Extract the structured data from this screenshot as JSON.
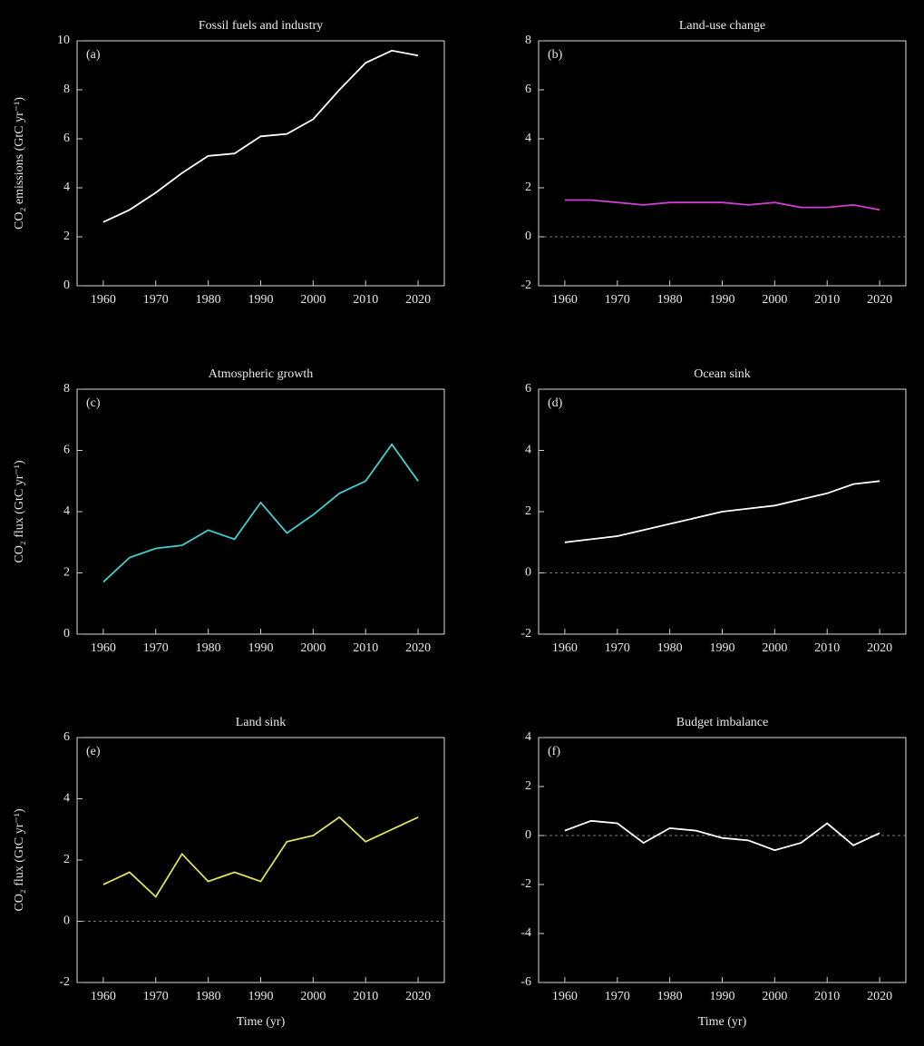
{
  "chart_data": [
    {
      "type": "line",
      "panel": "(a)",
      "title": "Fossil fuels and industry",
      "ylabel": "CO₂ emissions (GtC yr⁻¹)",
      "x": [
        1960,
        1965,
        1970,
        1975,
        1980,
        1985,
        1990,
        1995,
        2000,
        2005,
        2010,
        2015,
        2020
      ],
      "series": [
        {
          "name": "Fossil fuels and industry",
          "color": "#ffffff",
          "values": [
            2.6,
            3.1,
            3.8,
            4.6,
            5.3,
            5.4,
            6.1,
            6.2,
            6.8,
            8.0,
            9.1,
            9.6,
            9.4
          ]
        }
      ],
      "xlim": [
        1955,
        2025
      ],
      "xticks": [
        1960,
        1970,
        1980,
        1990,
        2000,
        2010,
        2020
      ],
      "ylim": [
        0,
        10
      ],
      "yticks": [
        0,
        2,
        4,
        6,
        8,
        10
      ]
    },
    {
      "type": "line",
      "panel": "(b)",
      "title": "Land-use change",
      "x": [
        1960,
        1965,
        1970,
        1975,
        1980,
        1985,
        1990,
        1995,
        2000,
        2005,
        2010,
        2015,
        2020
      ],
      "series": [
        {
          "name": "Land-use change",
          "color": "#d040d0",
          "values": [
            1.5,
            1.5,
            1.4,
            1.3,
            1.4,
            1.4,
            1.4,
            1.3,
            1.4,
            1.2,
            1.2,
            1.3,
            1.1
          ]
        }
      ],
      "xlim": [
        1955,
        2025
      ],
      "xticks": [
        1960,
        1970,
        1980,
        1990,
        2000,
        2010,
        2020
      ],
      "ylim": [
        -2,
        8
      ],
      "yticks": [
        -2,
        0,
        2,
        4,
        6,
        8
      ]
    },
    {
      "type": "line",
      "panel": "(c)",
      "title": "Atmospheric growth",
      "ylabel": "CO₂ flux (GtC yr⁻¹)",
      "x": [
        1960,
        1965,
        1970,
        1975,
        1980,
        1985,
        1990,
        1995,
        2000,
        2005,
        2010,
        2015,
        2020
      ],
      "series": [
        {
          "name": "Atmospheric growth",
          "color": "#40d0d0",
          "values": [
            1.7,
            2.5,
            2.8,
            2.9,
            3.4,
            3.1,
            4.3,
            3.3,
            3.9,
            4.6,
            5.0,
            6.2,
            5.0
          ]
        }
      ],
      "xlim": [
        1955,
        2025
      ],
      "xticks": [
        1960,
        1970,
        1980,
        1990,
        2000,
        2010,
        2020
      ],
      "ylim": [
        0,
        8
      ],
      "yticks": [
        0,
        2,
        4,
        6,
        8
      ]
    },
    {
      "type": "line",
      "panel": "(d)",
      "title": "Ocean sink",
      "x": [
        1960,
        1965,
        1970,
        1975,
        1980,
        1985,
        1990,
        1995,
        2000,
        2005,
        2010,
        2015,
        2020
      ],
      "series": [
        {
          "name": "Ocean sink",
          "color": "#ffffff",
          "values": [
            1.0,
            1.1,
            1.2,
            1.4,
            1.6,
            1.8,
            2.0,
            2.1,
            2.2,
            2.4,
            2.6,
            2.9,
            3.0
          ]
        }
      ],
      "xlim": [
        1955,
        2025
      ],
      "xticks": [
        1960,
        1970,
        1980,
        1990,
        2000,
        2010,
        2020
      ],
      "ylim": [
        -2,
        6
      ],
      "yticks": [
        -2,
        0,
        2,
        4,
        6
      ]
    },
    {
      "type": "line",
      "panel": "(e)",
      "title": "Land sink",
      "ylabel": "CO₂ flux (GtC yr⁻¹)",
      "xlabel": "Time (yr)",
      "x": [
        1960,
        1965,
        1970,
        1975,
        1980,
        1985,
        1990,
        1995,
        2000,
        2005,
        2010,
        2015,
        2020
      ],
      "series": [
        {
          "name": "Land sink",
          "color": "#e0e060",
          "values": [
            1.2,
            1.6,
            0.8,
            2.2,
            1.3,
            1.6,
            1.3,
            2.6,
            2.8,
            3.4,
            2.6,
            3.0,
            3.4
          ]
        }
      ],
      "xlim": [
        1955,
        2025
      ],
      "xticks": [
        1960,
        1970,
        1980,
        1990,
        2000,
        2010,
        2020
      ],
      "ylim": [
        -2,
        6
      ],
      "yticks": [
        -2,
        0,
        2,
        4,
        6
      ]
    },
    {
      "type": "line",
      "panel": "(f)",
      "title": "Budget imbalance",
      "xlabel": "Time (yr)",
      "x": [
        1960,
        1965,
        1970,
        1975,
        1980,
        1985,
        1990,
        1995,
        2000,
        2005,
        2010,
        2015,
        2020
      ],
      "series": [
        {
          "name": "Budget imbalance",
          "color": "#ffffff",
          "values": [
            0.2,
            0.6,
            0.5,
            -0.3,
            0.3,
            0.2,
            -0.1,
            -0.2,
            -0.6,
            -0.3,
            0.5,
            -0.4,
            0.1
          ]
        }
      ],
      "xlim": [
        1955,
        2025
      ],
      "xticks": [
        1960,
        1970,
        1980,
        1990,
        2000,
        2010,
        2020
      ],
      "ylim": [
        -6,
        4
      ],
      "yticks": [
        -6,
        -4,
        -2,
        0,
        2,
        4
      ]
    }
  ]
}
